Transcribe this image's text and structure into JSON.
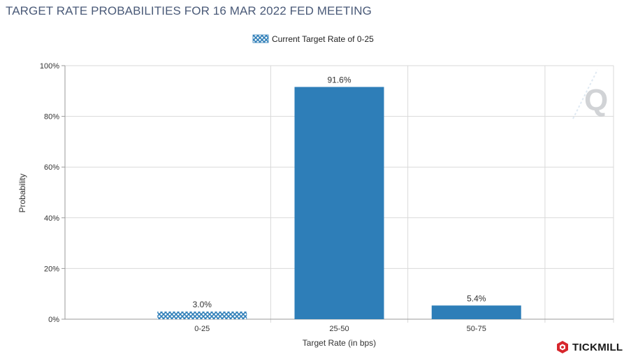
{
  "title": "TARGET RATE PROBABILITIES FOR 16 MAR 2022 FED MEETING",
  "brand": {
    "name": "TICKMILL",
    "logo_icon": "tickmill-hexagon-icon",
    "watermark_icon": "quikstrike-q-watermark-icon"
  },
  "colors": {
    "bar": "#2e7eb8",
    "hatch_fg": "#2e7eb8",
    "hatch_bg": "#ffffff",
    "grid": "#d9d9d9",
    "axis": "#9a9a9a",
    "title": "#4a5a78",
    "brand_red": "#d7262c"
  },
  "chart_data": {
    "type": "bar",
    "title": "TARGET RATE PROBABILITIES FOR 16 MAR 2022 FED MEETING",
    "xlabel": "Target Rate (in bps)",
    "ylabel": "Probability",
    "categories": [
      "0-25",
      "25-50",
      "50-75"
    ],
    "values": [
      3.0,
      91.6,
      5.4
    ],
    "value_labels": [
      "3.0%",
      "91.6%",
      "5.4%"
    ],
    "highlight": [
      true,
      false,
      false
    ],
    "ylim": [
      0,
      100
    ],
    "yticks": [
      0,
      20,
      40,
      60,
      80,
      100
    ],
    "ytick_labels": [
      "0%",
      "20%",
      "40%",
      "60%",
      "80%",
      "100%"
    ],
    "grid": true,
    "legend": {
      "position": "top-center",
      "label": "Current Target Rate of 0-25",
      "pattern": "hatched"
    }
  }
}
